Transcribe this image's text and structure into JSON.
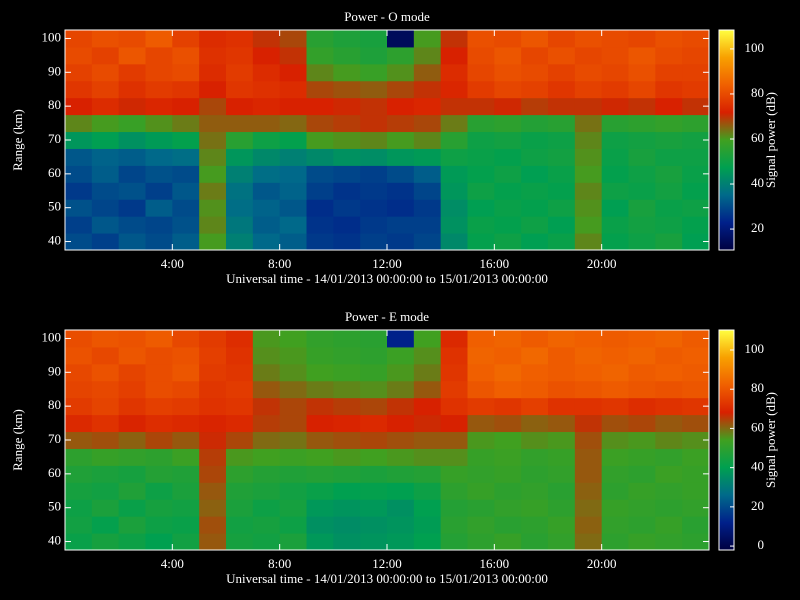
{
  "chart_data": [
    {
      "type": "heatmap",
      "title": "Power - O mode",
      "x_label": "Universal time - 14/01/2013 00:00:00 to 15/01/2013 00:00:00",
      "y_label": "Range (km)",
      "colorbar_label": "Signal power (dB)",
      "x": [
        0.5,
        1.5,
        2.5,
        3.5,
        4.5,
        5.5,
        6.5,
        7.5,
        8.5,
        9.5,
        10.5,
        11.5,
        12.5,
        13.5,
        14.5,
        15.5,
        16.5,
        17.5,
        18.5,
        19.5,
        20.5,
        21.5,
        22.5,
        23.5
      ],
      "y": [
        40,
        45,
        50,
        55,
        60,
        65,
        70,
        75,
        80,
        85,
        90,
        95,
        100
      ],
      "values": [
        [
          30,
          28,
          32,
          30,
          33,
          60,
          40,
          35,
          33,
          27,
          26,
          28,
          27,
          29,
          42,
          48,
          50,
          47,
          49,
          62,
          48,
          50,
          52,
          47
        ],
        [
          28,
          32,
          30,
          29,
          31,
          62,
          38,
          33,
          35,
          26,
          25,
          27,
          28,
          28,
          44,
          49,
          48,
          50,
          47,
          60,
          49,
          51,
          50,
          48
        ],
        [
          31,
          29,
          27,
          33,
          30,
          61,
          36,
          34,
          32,
          25,
          27,
          26,
          25,
          27,
          43,
          47,
          49,
          48,
          50,
          61,
          47,
          52,
          49,
          50
        ],
        [
          27,
          30,
          31,
          28,
          32,
          63,
          37,
          32,
          34,
          28,
          26,
          27,
          26,
          29,
          45,
          50,
          48,
          49,
          48,
          62,
          50,
          49,
          51,
          48
        ],
        [
          30,
          33,
          29,
          31,
          30,
          60,
          40,
          36,
          35,
          30,
          29,
          28,
          30,
          33,
          46,
          48,
          50,
          47,
          49,
          60,
          48,
          50,
          52,
          49
        ],
        [
          32,
          34,
          33,
          35,
          36,
          62,
          45,
          42,
          40,
          42,
          44,
          43,
          45,
          46,
          50,
          49,
          48,
          50,
          51,
          61,
          49,
          52,
          50,
          50
        ],
        [
          45,
          47,
          44,
          46,
          48,
          64,
          55,
          50,
          48,
          60,
          61,
          62,
          60,
          62,
          55,
          50,
          51,
          49,
          50,
          62,
          50,
          51,
          52,
          51
        ],
        [
          62,
          60,
          58,
          61,
          63,
          66,
          66,
          66,
          65,
          68,
          69,
          70,
          69,
          68,
          63,
          55,
          56,
          54,
          55,
          64,
          55,
          56,
          57,
          56
        ],
        [
          72,
          74,
          71,
          73,
          72,
          68,
          72,
          73,
          72,
          72,
          71,
          70,
          72,
          73,
          70,
          70,
          71,
          69,
          70,
          70,
          71,
          70,
          72,
          70
        ],
        [
          76,
          78,
          75,
          77,
          76,
          72,
          76,
          75,
          74,
          68,
          67,
          66,
          68,
          70,
          73,
          77,
          79,
          78,
          76,
          78,
          77,
          79,
          76,
          77
        ],
        [
          78,
          80,
          77,
          79,
          80,
          74,
          77,
          74,
          72,
          62,
          60,
          58,
          61,
          66,
          74,
          79,
          81,
          80,
          78,
          80,
          79,
          81,
          78,
          78
        ],
        [
          80,
          78,
          82,
          79,
          81,
          75,
          76,
          72,
          70,
          57,
          55,
          53,
          56,
          62,
          72,
          80,
          82,
          79,
          81,
          79,
          80,
          82,
          80,
          79
        ],
        [
          79,
          81,
          80,
          83,
          78,
          74,
          75,
          70,
          68,
          55,
          53,
          52,
          15,
          60,
          70,
          81,
          80,
          82,
          79,
          81,
          80,
          79,
          81,
          80
        ]
      ],
      "xlim": [
        0,
        24
      ],
      "xticks": [
        {
          "value": 4,
          "label": "4:00"
        },
        {
          "value": 8,
          "label": "8:00"
        },
        {
          "value": 12,
          "label": "12:00"
        },
        {
          "value": 16,
          "label": "16:00"
        },
        {
          "value": 20,
          "label": "20:00"
        }
      ],
      "ylim": [
        37.5,
        102.5
      ],
      "yticks": [
        40,
        50,
        60,
        70,
        80,
        90,
        100
      ],
      "clim": [
        10.7,
        108.4
      ],
      "cticks": [
        20,
        40,
        60,
        80,
        100
      ],
      "colormap": [
        "#000040",
        "#00208a",
        "#006a8a",
        "#00a050",
        "#40a020",
        "#d82000",
        "#f06000",
        "#f8a000",
        "#ffff40"
      ]
    },
    {
      "type": "heatmap",
      "title": "Power - E mode",
      "x_label": "Universal time - 14/01/2013 00:00:00 to 15/01/2013 00:00:00",
      "y_label": "Range (km)",
      "colorbar_label": "Signal power (dB)",
      "x": [
        0.5,
        1.5,
        2.5,
        3.5,
        4.5,
        5.5,
        6.5,
        7.5,
        8.5,
        9.5,
        10.5,
        11.5,
        12.5,
        13.5,
        14.5,
        15.5,
        16.5,
        17.5,
        18.5,
        19.5,
        20.5,
        21.5,
        22.5,
        23.5
      ],
      "y": [
        40,
        45,
        50,
        55,
        60,
        65,
        70,
        75,
        80,
        85,
        90,
        95,
        100
      ],
      "values": [
        [
          42,
          45,
          43,
          40,
          44,
          62,
          45,
          44,
          46,
          38,
          36,
          37,
          38,
          40,
          48,
          50,
          52,
          49,
          51,
          60,
          50,
          52,
          51,
          50
        ],
        [
          44,
          41,
          46,
          43,
          42,
          63,
          44,
          45,
          43,
          36,
          35,
          36,
          37,
          39,
          49,
          51,
          49,
          50,
          52,
          61,
          51,
          50,
          52,
          49
        ],
        [
          43,
          46,
          42,
          45,
          44,
          61,
          46,
          43,
          45,
          38,
          37,
          38,
          36,
          40,
          48,
          49,
          51,
          52,
          50,
          60,
          52,
          51,
          50,
          51
        ],
        [
          45,
          44,
          47,
          43,
          46,
          62,
          47,
          46,
          44,
          42,
          40,
          41,
          40,
          43,
          50,
          52,
          50,
          51,
          49,
          61,
          50,
          52,
          51,
          52
        ],
        [
          47,
          46,
          45,
          48,
          47,
          64,
          50,
          48,
          47,
          48,
          47,
          46,
          47,
          48,
          52,
          51,
          52,
          50,
          51,
          62,
          51,
          50,
          53,
          52
        ],
        [
          50,
          52,
          51,
          50,
          53,
          65,
          55,
          54,
          53,
          54,
          55,
          54,
          55,
          56,
          56,
          52,
          53,
          51,
          52,
          62,
          53,
          52,
          51,
          53
        ],
        [
          62,
          63,
          61,
          64,
          62,
          67,
          64,
          60,
          59,
          62,
          63,
          64,
          63,
          62,
          62,
          55,
          54,
          56,
          55,
          63,
          56,
          55,
          57,
          56
        ],
        [
          70,
          72,
          69,
          71,
          70,
          69,
          70,
          65,
          64,
          68,
          69,
          70,
          68,
          67,
          68,
          62,
          63,
          61,
          62,
          66,
          63,
          64,
          62,
          63
        ],
        [
          74,
          76,
          73,
          75,
          74,
          72,
          73,
          66,
          64,
          66,
          65,
          64,
          66,
          68,
          72,
          74,
          73,
          75,
          72,
          72,
          73,
          71,
          72,
          73
        ],
        [
          76,
          77,
          75,
          78,
          77,
          73,
          74,
          62,
          60,
          58,
          57,
          56,
          58,
          62,
          74,
          80,
          82,
          81,
          79,
          80,
          81,
          80,
          79,
          80
        ],
        [
          77,
          79,
          76,
          78,
          80,
          74,
          73,
          58,
          56,
          54,
          53,
          52,
          55,
          58,
          73,
          82,
          84,
          82,
          81,
          82,
          83,
          81,
          82,
          81
        ],
        [
          79,
          77,
          80,
          78,
          79,
          75,
          72,
          56,
          55,
          52,
          51,
          50,
          53,
          56,
          72,
          83,
          82,
          84,
          81,
          83,
          82,
          83,
          81,
          82
        ],
        [
          78,
          80,
          79,
          81,
          77,
          74,
          71,
          55,
          54,
          51,
          50,
          49,
          12,
          54,
          70,
          82,
          83,
          81,
          83,
          82,
          81,
          82,
          83,
          81
        ]
      ],
      "xlim": [
        0,
        24
      ],
      "xticks": [
        {
          "value": 4,
          "label": "4:00"
        },
        {
          "value": 8,
          "label": "8:00"
        },
        {
          "value": 12,
          "label": "12:00"
        },
        {
          "value": 16,
          "label": "16:00"
        },
        {
          "value": 20,
          "label": "20:00"
        }
      ],
      "ylim": [
        37.5,
        102.5
      ],
      "yticks": [
        40,
        50,
        60,
        70,
        80,
        90,
        100
      ],
      "clim": [
        -2,
        110.2
      ],
      "cticks": [
        0,
        20,
        40,
        60,
        80,
        100
      ],
      "colormap": [
        "#000040",
        "#00208a",
        "#006a8a",
        "#00a050",
        "#40a020",
        "#d82000",
        "#f06000",
        "#f8a000",
        "#ffff40"
      ]
    }
  ]
}
